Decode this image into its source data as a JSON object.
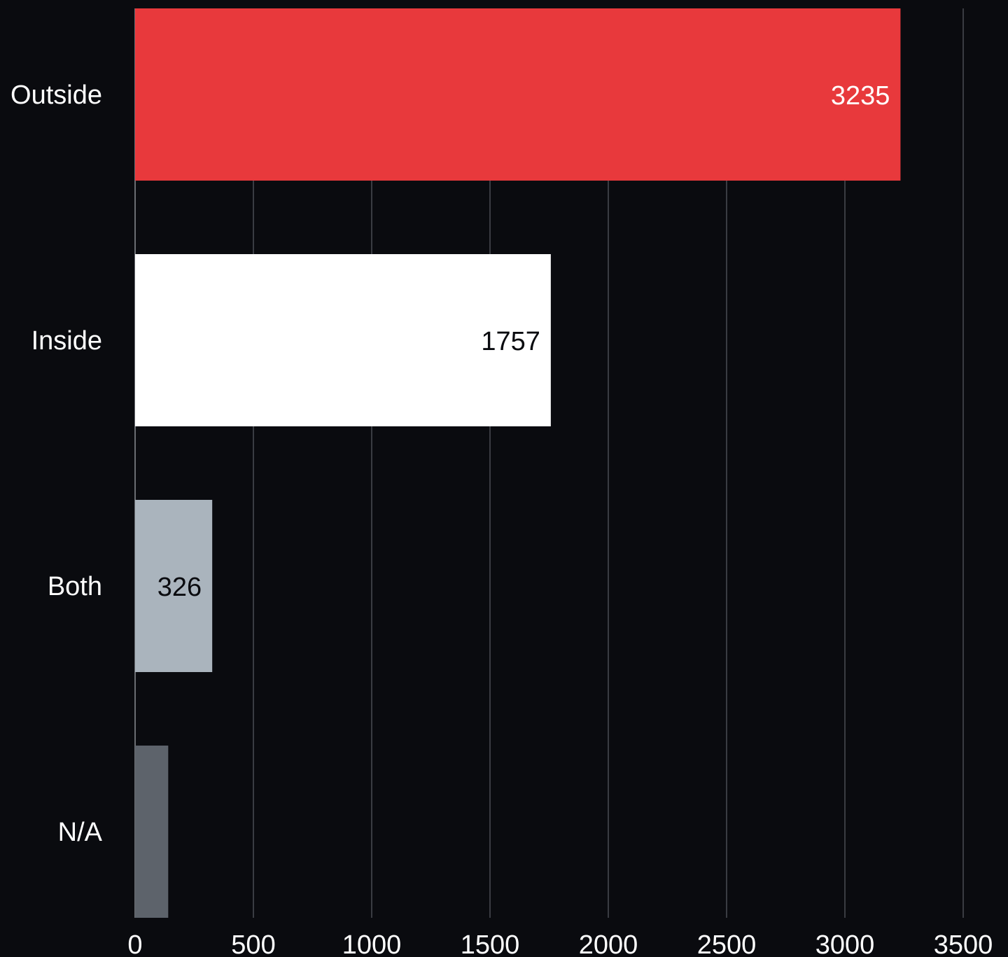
{
  "chart_data": {
    "type": "bar",
    "orientation": "horizontal",
    "categories": [
      "Outside",
      "Inside",
      "Both",
      "N/A"
    ],
    "values": [
      3235,
      1757,
      326,
      140
    ],
    "value_labels": [
      "3235",
      "1757",
      "326",
      ""
    ],
    "bar_colors": [
      "#e8393c",
      "#ffffff",
      "#aab4bd",
      "#5d636b"
    ],
    "label_colors": [
      "#ffffff",
      "#0a0b0f",
      "#0a0b0f",
      "#ffffff"
    ],
    "xlim": [
      0,
      3500
    ],
    "x_ticks": [
      0,
      500,
      1000,
      1500,
      2000,
      2500,
      3000,
      3500
    ],
    "grid": true,
    "title": "",
    "xlabel": "",
    "ylabel": ""
  },
  "colors": {
    "background": "#0a0b0f",
    "grid": "#4a4d53",
    "axis": "#8a8e94",
    "text": "#ffffff"
  }
}
